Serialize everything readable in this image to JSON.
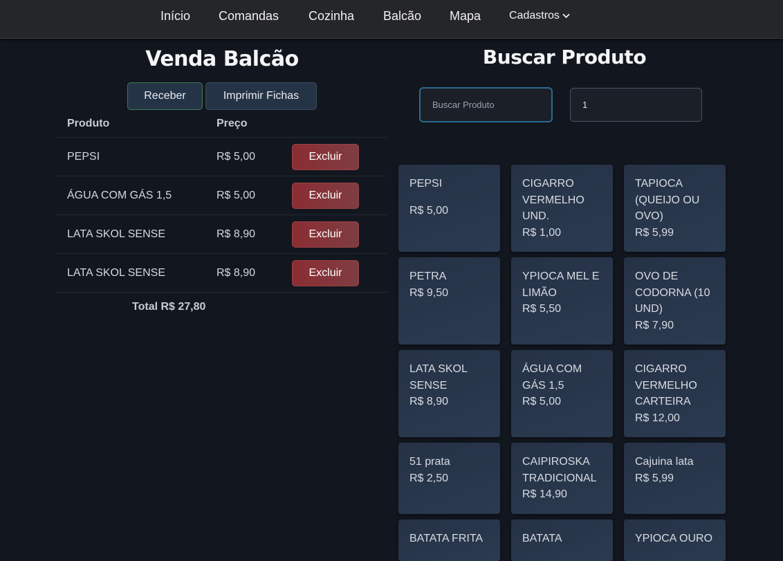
{
  "nav": {
    "items": [
      "Início",
      "Comandas",
      "Cozinha",
      "Balcão",
      "Mapa"
    ],
    "dropdown": "Cadastros"
  },
  "left": {
    "title": "Venda Balcão",
    "receive": "Receber",
    "print": "Imprimir Fichas",
    "headers": {
      "product": "Produto",
      "price": "Preço"
    },
    "rows": [
      {
        "name": "PEPSI",
        "price": "R$ 5,00"
      },
      {
        "name": "ÁGUA COM GÁS 1,5",
        "price": "R$ 5,00"
      },
      {
        "name": "LATA SKOL SENSE",
        "price": "R$ 8,90"
      },
      {
        "name": "LATA SKOL SENSE",
        "price": "R$ 8,90"
      }
    ],
    "delete": "Excluir",
    "total": "Total R$ 27,80"
  },
  "right": {
    "title": "Buscar Produto",
    "search_placeholder": "Buscar Produto",
    "quantity": "1",
    "products": [
      {
        "name": "PEPSI",
        "price": "R$ 5,00"
      },
      {
        "name": "CIGARRO VERMELHO UND.",
        "price": "R$ 1,00"
      },
      {
        "name": "TAPIOCA (QUEIJO OU OVO)",
        "price": "R$ 5,99"
      },
      {
        "name": "PETRA",
        "price": "R$ 9,50"
      },
      {
        "name": "YPIOCA MEL E LIMÃO",
        "price": "R$ 5,50"
      },
      {
        "name": "OVO DE CODORNA (10 UND)",
        "price": "R$ 7,90"
      },
      {
        "name": "LATA SKOL SENSE",
        "price": "R$ 8,90"
      },
      {
        "name": "ÁGUA COM GÁS 1,5",
        "price": "R$ 5,00"
      },
      {
        "name": "CIGARRO VERMELHO CARTEIRA",
        "price": "R$ 12,00"
      },
      {
        "name": "51 prata",
        "price": "R$ 2,50"
      },
      {
        "name": "CAIPIROSKA TRADICIONAL",
        "price": "R$ 14,90"
      },
      {
        "name": "Cajuina lata",
        "price": "R$ 5,99"
      },
      {
        "name": "BATATA FRITA",
        "price": ""
      },
      {
        "name": "BATATA",
        "price": ""
      },
      {
        "name": "YPIOCA OURO",
        "price": ""
      }
    ]
  }
}
